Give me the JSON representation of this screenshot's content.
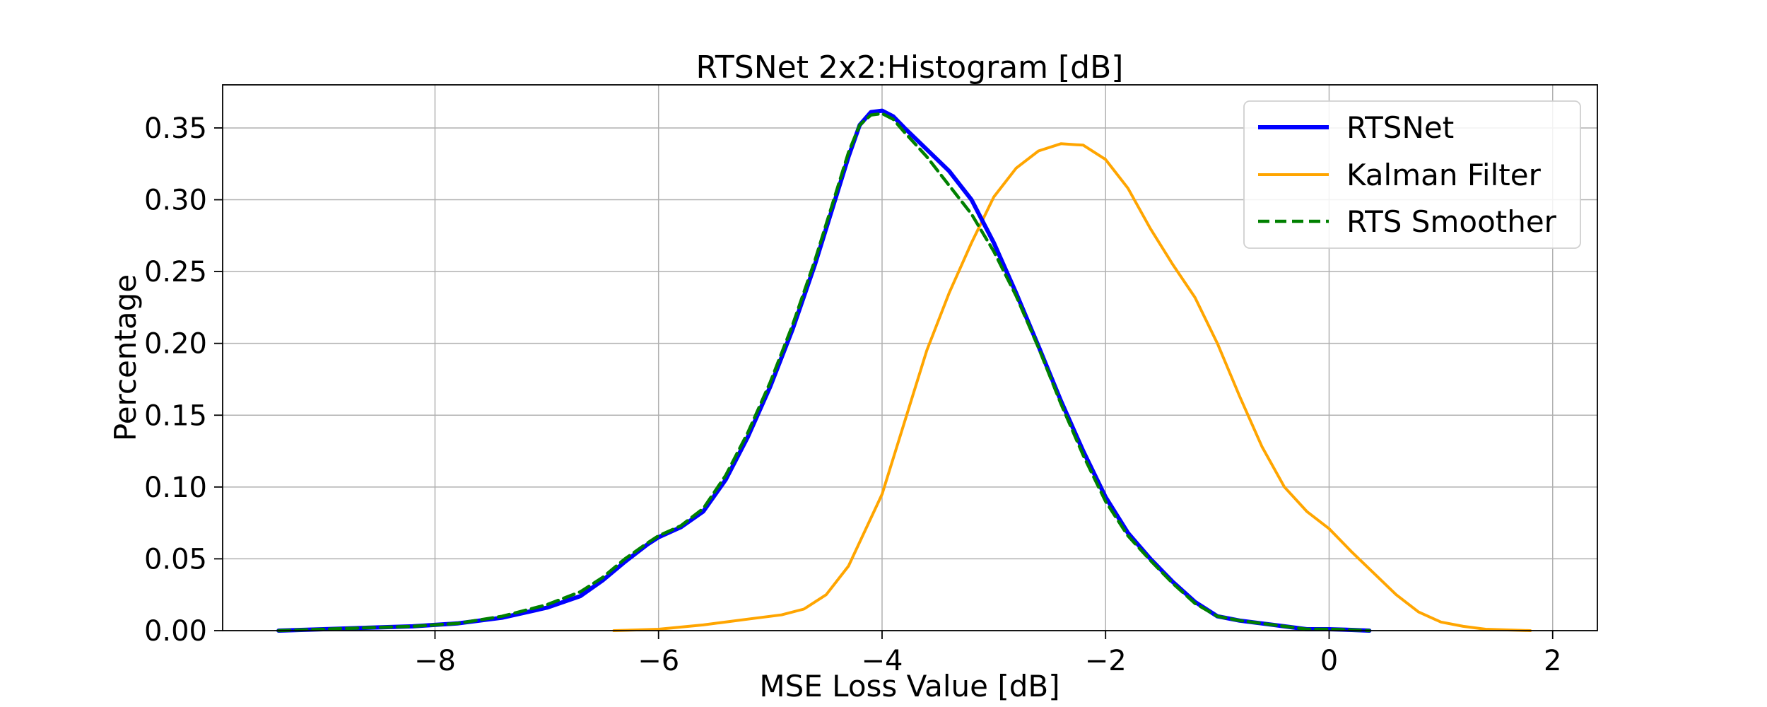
{
  "chart_data": {
    "type": "line",
    "title": "RTSNet 2x2:Histogram [dB]",
    "xlabel": "MSE Loss Value [dB]",
    "ylabel": "Percentage",
    "xlim": [
      -9.9,
      2.4
    ],
    "ylim": [
      0,
      0.38
    ],
    "xticks": [
      -8,
      -6,
      -4,
      -2,
      0,
      2
    ],
    "xtick_labels": [
      "−8",
      "−6",
      "−4",
      "−2",
      "0",
      "2"
    ],
    "yticks": [
      0,
      0.05,
      0.1,
      0.15,
      0.2,
      0.25,
      0.3,
      0.35
    ],
    "ytick_labels": [
      "0.00",
      "0.05",
      "0.10",
      "0.15",
      "0.20",
      "0.25",
      "0.30",
      "0.35"
    ],
    "grid": true,
    "legend_position": "top-right",
    "series": [
      {
        "name": "RTSNet",
        "color": "#0000ff",
        "style": "solid",
        "x": [
          -9.4,
          -9.0,
          -8.6,
          -8.2,
          -7.8,
          -7.4,
          -7.0,
          -6.7,
          -6.5,
          -6.3,
          -6.1,
          -6.0,
          -5.8,
          -5.6,
          -5.4,
          -5.2,
          -5.0,
          -4.8,
          -4.6,
          -4.4,
          -4.3,
          -4.2,
          -4.1,
          -4.0,
          -3.9,
          -3.8,
          -3.6,
          -3.4,
          -3.2,
          -3.0,
          -2.8,
          -2.6,
          -2.4,
          -2.2,
          -2.0,
          -1.8,
          -1.6,
          -1.4,
          -1.2,
          -1.0,
          -0.8,
          -0.6,
          -0.4,
          -0.2,
          0.0,
          0.2,
          0.36
        ],
        "y": [
          0.0,
          0.001,
          0.002,
          0.003,
          0.005,
          0.009,
          0.016,
          0.024,
          0.035,
          0.048,
          0.06,
          0.065,
          0.072,
          0.083,
          0.105,
          0.135,
          0.17,
          0.21,
          0.255,
          0.305,
          0.33,
          0.352,
          0.361,
          0.362,
          0.358,
          0.35,
          0.335,
          0.32,
          0.3,
          0.27,
          0.235,
          0.198,
          0.16,
          0.125,
          0.093,
          0.068,
          0.05,
          0.034,
          0.02,
          0.01,
          0.007,
          0.005,
          0.003,
          0.001,
          0.001,
          0.0005,
          0.0
        ]
      },
      {
        "name": "Kalman Filter",
        "color": "#ffa500",
        "style": "solid",
        "x": [
          -6.4,
          -6.0,
          -5.6,
          -5.2,
          -4.9,
          -4.7,
          -4.5,
          -4.3,
          -4.0,
          -3.8,
          -3.6,
          -3.4,
          -3.2,
          -3.0,
          -2.8,
          -2.6,
          -2.4,
          -2.2,
          -2.0,
          -1.8,
          -1.6,
          -1.4,
          -1.2,
          -1.0,
          -0.8,
          -0.6,
          -0.4,
          -0.2,
          0.0,
          0.2,
          0.4,
          0.6,
          0.8,
          1.0,
          1.2,
          1.4,
          1.8
        ],
        "y": [
          0.0,
          0.001,
          0.004,
          0.008,
          0.011,
          0.015,
          0.025,
          0.045,
          0.095,
          0.145,
          0.195,
          0.235,
          0.27,
          0.302,
          0.322,
          0.334,
          0.339,
          0.338,
          0.328,
          0.308,
          0.28,
          0.255,
          0.232,
          0.2,
          0.163,
          0.128,
          0.1,
          0.083,
          0.071,
          0.055,
          0.04,
          0.025,
          0.013,
          0.006,
          0.003,
          0.001,
          0.0
        ]
      },
      {
        "name": "RTS Smoother",
        "color": "#008000",
        "style": "dashed",
        "x": [
          -9.4,
          -9.0,
          -8.6,
          -8.2,
          -7.8,
          -7.4,
          -7.0,
          -6.7,
          -6.5,
          -6.3,
          -6.1,
          -6.0,
          -5.8,
          -5.6,
          -5.4,
          -5.2,
          -5.0,
          -4.8,
          -4.6,
          -4.4,
          -4.3,
          -4.2,
          -4.1,
          -4.0,
          -3.9,
          -3.8,
          -3.6,
          -3.4,
          -3.2,
          -3.0,
          -2.8,
          -2.6,
          -2.4,
          -2.2,
          -2.0,
          -1.8,
          -1.6,
          -1.4,
          -1.2,
          -1.0,
          -0.8,
          -0.6,
          -0.4,
          -0.2,
          0.0,
          0.2,
          0.36
        ],
        "y": [
          0.0,
          0.001,
          0.002,
          0.003,
          0.005,
          0.01,
          0.018,
          0.027,
          0.037,
          0.05,
          0.061,
          0.066,
          0.073,
          0.085,
          0.108,
          0.138,
          0.173,
          0.213,
          0.258,
          0.308,
          0.333,
          0.352,
          0.359,
          0.36,
          0.356,
          0.347,
          0.33,
          0.31,
          0.29,
          0.264,
          0.233,
          0.197,
          0.158,
          0.122,
          0.09,
          0.066,
          0.049,
          0.033,
          0.019,
          0.01,
          0.007,
          0.005,
          0.003,
          0.001,
          0.001,
          0.0005,
          0.0
        ]
      }
    ]
  }
}
